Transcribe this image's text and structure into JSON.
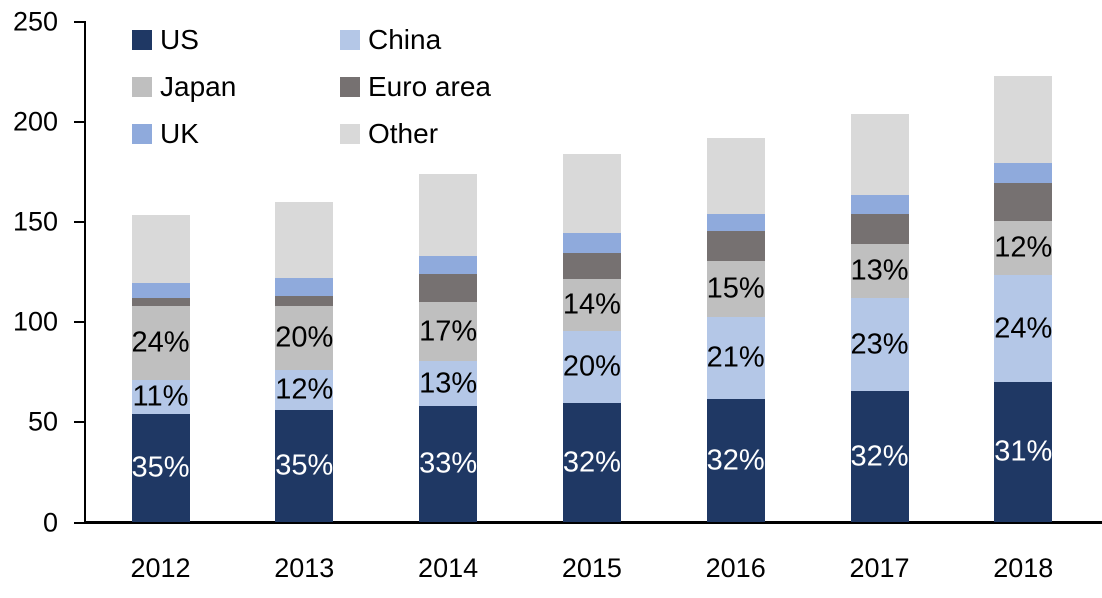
{
  "chart_data": {
    "type": "bar",
    "stacked": true,
    "title": "",
    "xlabel": "",
    "ylabel": "",
    "categories": [
      "2012",
      "2013",
      "2014",
      "2015",
      "2016",
      "2017",
      "2018"
    ],
    "series": [
      {
        "name": "US",
        "color": "#1F3864",
        "values": [
          54.0,
          56.0,
          58.0,
          59.5,
          61.5,
          65.5,
          70.0
        ],
        "labels": [
          "35%",
          "35%",
          "33%",
          "32%",
          "32%",
          "32%",
          "31%"
        ],
        "label_color": "#FFFFFF"
      },
      {
        "name": "China",
        "color": "#B4C7E7",
        "values": [
          17.0,
          20.0,
          22.5,
          36.0,
          41.0,
          46.5,
          53.5
        ],
        "labels": [
          "11%",
          "12%",
          "13%",
          "20%",
          "21%",
          "23%",
          "24%"
        ],
        "label_color": "#000000"
      },
      {
        "name": "Japan",
        "color": "#BFBFBF",
        "values": [
          37.0,
          32.0,
          29.5,
          26.0,
          28.0,
          27.0,
          27.0
        ],
        "labels": [
          "24%",
          "20%",
          "17%",
          "14%",
          "15%",
          "13%",
          "12%"
        ],
        "label_color": "#000000"
      },
      {
        "name": "Euro area",
        "color": "#767171",
        "values": [
          4.0,
          5.0,
          14.0,
          13.0,
          15.0,
          15.0,
          19.0
        ],
        "labels": null,
        "label_color": "#000000"
      },
      {
        "name": "UK",
        "color": "#8FAADC",
        "values": [
          7.5,
          9.0,
          9.0,
          10.0,
          8.5,
          9.5,
          10.0
        ],
        "labels": null,
        "label_color": "#000000"
      },
      {
        "name": "Other",
        "color": "#D9D9D9",
        "values": [
          34.0,
          38.0,
          41.0,
          39.5,
          38.0,
          40.5,
          43.5
        ],
        "labels": null,
        "label_color": "#000000"
      }
    ],
    "totals": [
      153.5,
      160.0,
      174.0,
      184.0,
      192.0,
      204.0,
      223.0
    ],
    "ylim": [
      0,
      250
    ],
    "yticks": [
      0,
      50,
      100,
      150,
      200,
      250
    ],
    "grid": false,
    "legend_position": "top-left",
    "legend_columns": 2
  }
}
